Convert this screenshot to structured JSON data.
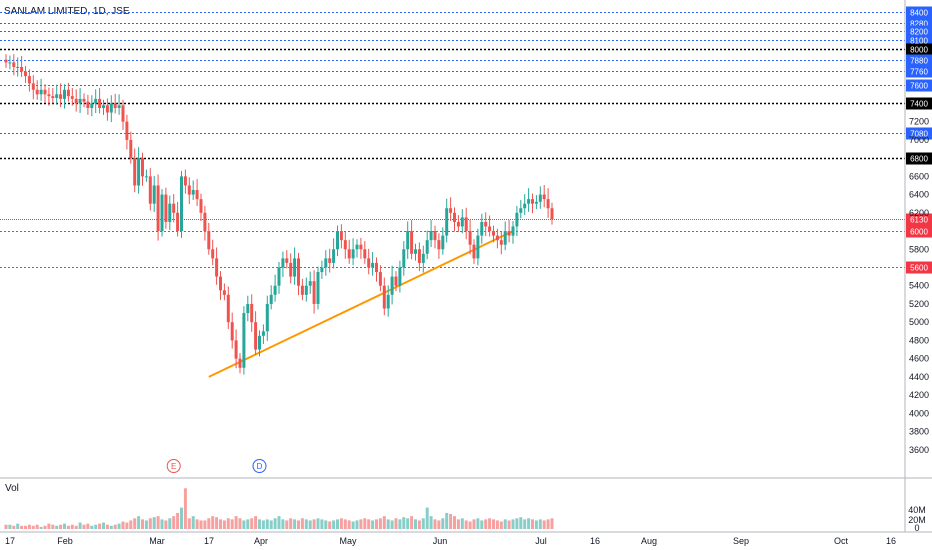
{
  "header": {
    "title": "SANLAM LIMITED, 1D, JSE"
  },
  "volume": {
    "label": "Vol",
    "ticks": [
      "40M",
      "20M",
      "0"
    ]
  },
  "markers": [
    {
      "name": "earnings-marker",
      "letter": "E",
      "color": "#ef5350",
      "x_index": 43
    },
    {
      "name": "dividend-marker",
      "letter": "D",
      "color": "#2962ff",
      "x_index": 65
    }
  ],
  "colors": {
    "up": "#26a69a",
    "down": "#ef5350",
    "trendline": "#ff9800",
    "blue_level": "#2962ff",
    "black_level": "#000000",
    "red_level": "#f23645"
  },
  "chart_data": {
    "type": "candlestick",
    "title": "SANLAM LIMITED, 1D, JSE",
    "ylim": [
      3400,
      8480
    ],
    "y_ticks": [
      "8400",
      "8280",
      "8100",
      "7880",
      "7760",
      "7600",
      "7200",
      "7000",
      "6600",
      "6400",
      "6200",
      "5800",
      "5400",
      "5200",
      "5000",
      "4800",
      "4600",
      "4400",
      "4200",
      "4000",
      "3800",
      "3600"
    ],
    "x_ticks": [
      "17",
      "Feb",
      "Mar",
      "17",
      "Apr",
      "May",
      "Jun",
      "Jul",
      "16",
      "Aug",
      "Sep",
      "Oct",
      "16"
    ],
    "levels": [
      {
        "value": 8400,
        "label": "8400",
        "kind": "blue"
      },
      {
        "value": 8280,
        "label": "8280",
        "kind": "blue"
      },
      {
        "value": 8200,
        "label": "8200",
        "kind": "blue"
      },
      {
        "value": 8100,
        "label": "8100",
        "kind": "blue"
      },
      {
        "value": 8000,
        "label": "8000",
        "kind": "black"
      },
      {
        "value": 7880,
        "label": "7880",
        "kind": "blue"
      },
      {
        "value": 7760,
        "label": "7760",
        "kind": "blue"
      },
      {
        "value": 7600,
        "label": "7600",
        "kind": "blue"
      },
      {
        "value": 7400,
        "label": "7400",
        "kind": "black"
      },
      {
        "value": 7080,
        "label": "7080",
        "kind": "blue"
      },
      {
        "value": 6800,
        "label": "6800",
        "kind": "black"
      },
      {
        "value": 6130,
        "label": "6130",
        "kind": "last"
      },
      {
        "value": 6000,
        "label": "6000",
        "kind": "red"
      },
      {
        "value": 5600,
        "label": "5600",
        "kind": "red"
      }
    ],
    "trendline": {
      "from": [
        52,
        4400
      ],
      "to": [
        130,
        6000
      ]
    },
    "close": [
      7850,
      7850,
      7800,
      7800,
      7750,
      7700,
      7620,
      7550,
      7500,
      7550,
      7500,
      7480,
      7460,
      7500,
      7450,
      7550,
      7480,
      7450,
      7400,
      7450,
      7420,
      7350,
      7400,
      7450,
      7350,
      7380,
      7300,
      7400,
      7350,
      7380,
      7200,
      7000,
      6800,
      6500,
      6800,
      6600,
      6600,
      6300,
      6500,
      6000,
      6400,
      6100,
      6300,
      6200,
      6000,
      6600,
      6500,
      6400,
      6450,
      6350,
      6200,
      6000,
      5800,
      5700,
      5500,
      5350,
      5300,
      5000,
      4800,
      4600,
      4500,
      5100,
      5200,
      5000,
      4700,
      4850,
      4900,
      5200,
      5300,
      5400,
      5600,
      5700,
      5650,
      5500,
      5700,
      5400,
      5300,
      5400,
      5450,
      5200,
      5550,
      5600,
      5700,
      5650,
      5800,
      6000,
      5900,
      5800,
      5700,
      5800,
      5850,
      5800,
      5700,
      5600,
      5650,
      5550,
      5400,
      5150,
      5300,
      5500,
      5400,
      5600,
      5800,
      6000,
      5750,
      5800,
      5650,
      5750,
      5900,
      6000,
      5900,
      5800,
      5950,
      6250,
      6200,
      6100,
      6050,
      6150,
      6000,
      5850,
      5700,
      5950,
      6100,
      6050,
      6000,
      5950,
      5900,
      5850,
      6000,
      5950,
      6050,
      6200,
      6250,
      6300,
      6350,
      6300,
      6320,
      6400,
      6350,
      6250,
      6130
    ],
    "volume": [
      4,
      4,
      3,
      5,
      3,
      3,
      4,
      3,
      4,
      2,
      3,
      5,
      4,
      3,
      4,
      5,
      3,
      4,
      3,
      6,
      4,
      5,
      3,
      4,
      5,
      6,
      4,
      3,
      4,
      5,
      7,
      6,
      8,
      10,
      12,
      9,
      8,
      10,
      11,
      12,
      9,
      8,
      10,
      12,
      15,
      20,
      38,
      10,
      12,
      9,
      8,
      8,
      10,
      12,
      11,
      9,
      8,
      10,
      9,
      12,
      10,
      8,
      9,
      10,
      12,
      9,
      8,
      9,
      8,
      10,
      12,
      9,
      8,
      10,
      9,
      8,
      10,
      9,
      8,
      9,
      10,
      9,
      8,
      7,
      8,
      9,
      10,
      9,
      8,
      7,
      8,
      9,
      10,
      9,
      8,
      9,
      10,
      12,
      9,
      8,
      10,
      9,
      11,
      10,
      12,
      9,
      8,
      10,
      20,
      12,
      9,
      8,
      10,
      15,
      14,
      12,
      9,
      10,
      8,
      7,
      9,
      10,
      8,
      9,
      10,
      9,
      8,
      7,
      9,
      8,
      9,
      10,
      11,
      9,
      10,
      9,
      8,
      9,
      8,
      9,
      10
    ]
  }
}
